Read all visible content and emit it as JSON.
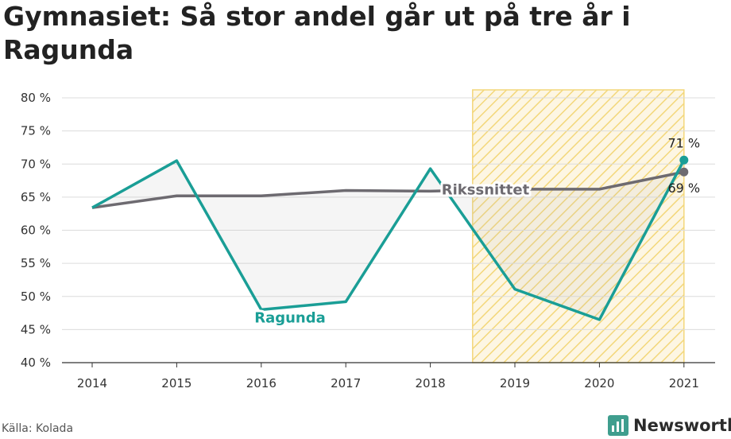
{
  "title": "Gymnasiet: Så stor andel går ut på tre år i Ragunda",
  "source": "Källa: Kolada",
  "brand": "Newsworthy",
  "colors": {
    "ragunda": "#1a9e96",
    "riket": "#6d6a70",
    "highlight": "#f3d77a",
    "grid": "#dcdcdc",
    "brand": "#3f9e8e"
  },
  "chart_data": {
    "type": "line",
    "x": [
      "2014",
      "2015",
      "2016",
      "2017",
      "2018",
      "2019",
      "2020",
      "2021"
    ],
    "ylim": [
      40,
      80
    ],
    "yticks": [
      40,
      45,
      50,
      55,
      60,
      65,
      70,
      75,
      80
    ],
    "ytick_labels": [
      "40 %",
      "45 %",
      "50 %",
      "55 %",
      "60 %",
      "65 %",
      "70 %",
      "75 %",
      "80 %"
    ],
    "highlight_range": [
      "2019",
      "2021"
    ],
    "series": [
      {
        "name": "Ragunda",
        "values": [
          63.4,
          70.5,
          48.0,
          49.2,
          69.3,
          51.1,
          46.5,
          70.6
        ],
        "end_label": "71 %"
      },
      {
        "name": "Rikssnittet",
        "values": [
          63.4,
          65.2,
          65.2,
          66.0,
          65.9,
          66.2,
          66.2,
          68.8
        ],
        "end_label": "69 %"
      }
    ]
  }
}
